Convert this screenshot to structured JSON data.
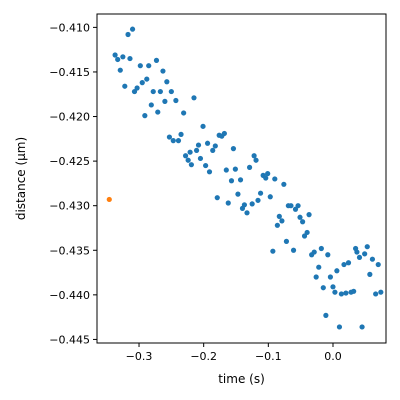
{
  "chart_data": {
    "type": "scatter",
    "title": "",
    "xlabel": "time (s)",
    "ylabel": "distance (µm)",
    "xlim": [
      -0.365,
      0.082
    ],
    "ylim": [
      -0.4454,
      -0.4085
    ],
    "xticks": [
      -0.3,
      -0.2,
      -0.1,
      0.0
    ],
    "xtick_labels": [
      "−0.3",
      "−0.2",
      "−0.1",
      "0.0"
    ],
    "yticks": [
      -0.445,
      -0.44,
      -0.435,
      -0.43,
      -0.425,
      -0.42,
      -0.415,
      -0.41
    ],
    "ytick_labels": [
      "−0.445",
      "−0.440",
      "−0.435",
      "−0.430",
      "−0.425",
      "−0.420",
      "−0.415",
      "−0.410"
    ],
    "grid": false,
    "series": [
      {
        "color": "#1f77b4",
        "points": [
          [
            -0.337,
            -0.4131
          ],
          [
            -0.333,
            -0.4136
          ],
          [
            -0.329,
            -0.4148
          ],
          [
            -0.325,
            -0.4133
          ],
          [
            -0.322,
            -0.4166
          ],
          [
            -0.317,
            -0.4108
          ],
          [
            -0.314,
            -0.4135
          ],
          [
            -0.31,
            -0.4102
          ],
          [
            -0.307,
            -0.4172
          ],
          [
            -0.303,
            -0.4168
          ],
          [
            -0.298,
            -0.4143
          ],
          [
            -0.295,
            -0.4162
          ],
          [
            -0.291,
            -0.4199
          ],
          [
            -0.288,
            -0.4158
          ],
          [
            -0.285,
            -0.4143
          ],
          [
            -0.281,
            -0.4187
          ],
          [
            -0.278,
            -0.4172
          ],
          [
            -0.273,
            -0.4137
          ],
          [
            -0.271,
            -0.4195
          ],
          [
            -0.267,
            -0.4172
          ],
          [
            -0.263,
            -0.4149
          ],
          [
            -0.26,
            -0.4183
          ],
          [
            -0.257,
            -0.4161
          ],
          [
            -0.253,
            -0.4223
          ],
          [
            -0.25,
            -0.4172
          ],
          [
            -0.247,
            -0.4227
          ],
          [
            -0.243,
            -0.4182
          ],
          [
            -0.239,
            -0.4227
          ],
          [
            -0.235,
            -0.422
          ],
          [
            -0.231,
            -0.4196
          ],
          [
            -0.228,
            -0.4244
          ],
          [
            -0.224,
            -0.4249
          ],
          [
            -0.221,
            -0.424
          ],
          [
            -0.219,
            -0.4254
          ],
          [
            -0.215,
            -0.4179
          ],
          [
            -0.211,
            -0.4238
          ],
          [
            -0.208,
            -0.4232
          ],
          [
            -0.205,
            -0.4247
          ],
          [
            -0.201,
            -0.4211
          ],
          [
            -0.197,
            -0.4255
          ],
          [
            -0.194,
            -0.423
          ],
          [
            -0.191,
            -0.4262
          ],
          [
            -0.186,
            -0.4238
          ],
          [
            -0.182,
            -0.4233
          ],
          [
            -0.179,
            -0.4291
          ],
          [
            -0.176,
            -0.4221
          ],
          [
            -0.172,
            -0.4222
          ],
          [
            -0.168,
            -0.4219
          ],
          [
            -0.165,
            -0.426
          ],
          [
            -0.162,
            -0.4297
          ],
          [
            -0.157,
            -0.4272
          ],
          [
            -0.154,
            -0.4236
          ],
          [
            -0.151,
            -0.4259
          ],
          [
            -0.147,
            -0.4287
          ],
          [
            -0.143,
            -0.4271
          ],
          [
            -0.14,
            -0.4303
          ],
          [
            -0.137,
            -0.4299
          ],
          [
            -0.133,
            -0.4308
          ],
          [
            -0.129,
            -0.4257
          ],
          [
            -0.125,
            -0.4298
          ],
          [
            -0.122,
            -0.4244
          ],
          [
            -0.119,
            -0.4249
          ],
          [
            -0.116,
            -0.4294
          ],
          [
            -0.112,
            -0.4286
          ],
          [
            -0.108,
            -0.4266
          ],
          [
            -0.104,
            -0.4269
          ],
          [
            -0.101,
            -0.4264
          ],
          [
            -0.097,
            -0.429
          ],
          [
            -0.093,
            -0.4351
          ],
          [
            -0.09,
            -0.427
          ],
          [
            -0.086,
            -0.4322
          ],
          [
            -0.083,
            -0.4312
          ],
          [
            -0.079,
            -0.4317
          ],
          [
            -0.076,
            -0.4276
          ],
          [
            -0.072,
            -0.434
          ],
          [
            -0.069,
            -0.43
          ],
          [
            -0.065,
            -0.43
          ],
          [
            -0.061,
            -0.435
          ],
          [
            -0.058,
            -0.4304
          ],
          [
            -0.054,
            -0.43
          ],
          [
            -0.051,
            -0.4313
          ],
          [
            -0.047,
            -0.4318
          ],
          [
            -0.044,
            -0.4334
          ],
          [
            -0.04,
            -0.433
          ],
          [
            -0.037,
            -0.431
          ],
          [
            -0.033,
            -0.4355
          ],
          [
            -0.029,
            -0.4352
          ],
          [
            -0.026,
            -0.438
          ],
          [
            -0.022,
            -0.4369
          ],
          [
            -0.018,
            -0.4348
          ],
          [
            -0.015,
            -0.4392
          ],
          [
            -0.011,
            -0.4423
          ],
          [
            -0.008,
            -0.4355
          ],
          [
            -0.004,
            -0.438
          ],
          [
            0.0,
            -0.4391
          ],
          [
            0.003,
            -0.4397
          ],
          [
            0.006,
            -0.4373
          ],
          [
            0.01,
            -0.4436
          ],
          [
            0.013,
            -0.4399
          ],
          [
            0.017,
            -0.4366
          ],
          [
            0.02,
            -0.4398
          ],
          [
            0.024,
            -0.4364
          ],
          [
            0.028,
            -0.4397
          ],
          [
            0.032,
            -0.4396
          ],
          [
            0.035,
            -0.4348
          ],
          [
            0.037,
            -0.4352
          ],
          [
            0.041,
            -0.4358
          ],
          [
            0.045,
            -0.4436
          ],
          [
            0.049,
            -0.4354
          ],
          [
            0.053,
            -0.4346
          ],
          [
            0.057,
            -0.4377
          ],
          [
            0.061,
            -0.436
          ],
          [
            0.066,
            -0.4399
          ],
          [
            0.07,
            -0.4366
          ],
          [
            0.074,
            -0.4397
          ]
        ]
      },
      {
        "color": "#ff7f0e",
        "points": [
          [
            -0.346,
            -0.4293
          ]
        ]
      }
    ]
  }
}
